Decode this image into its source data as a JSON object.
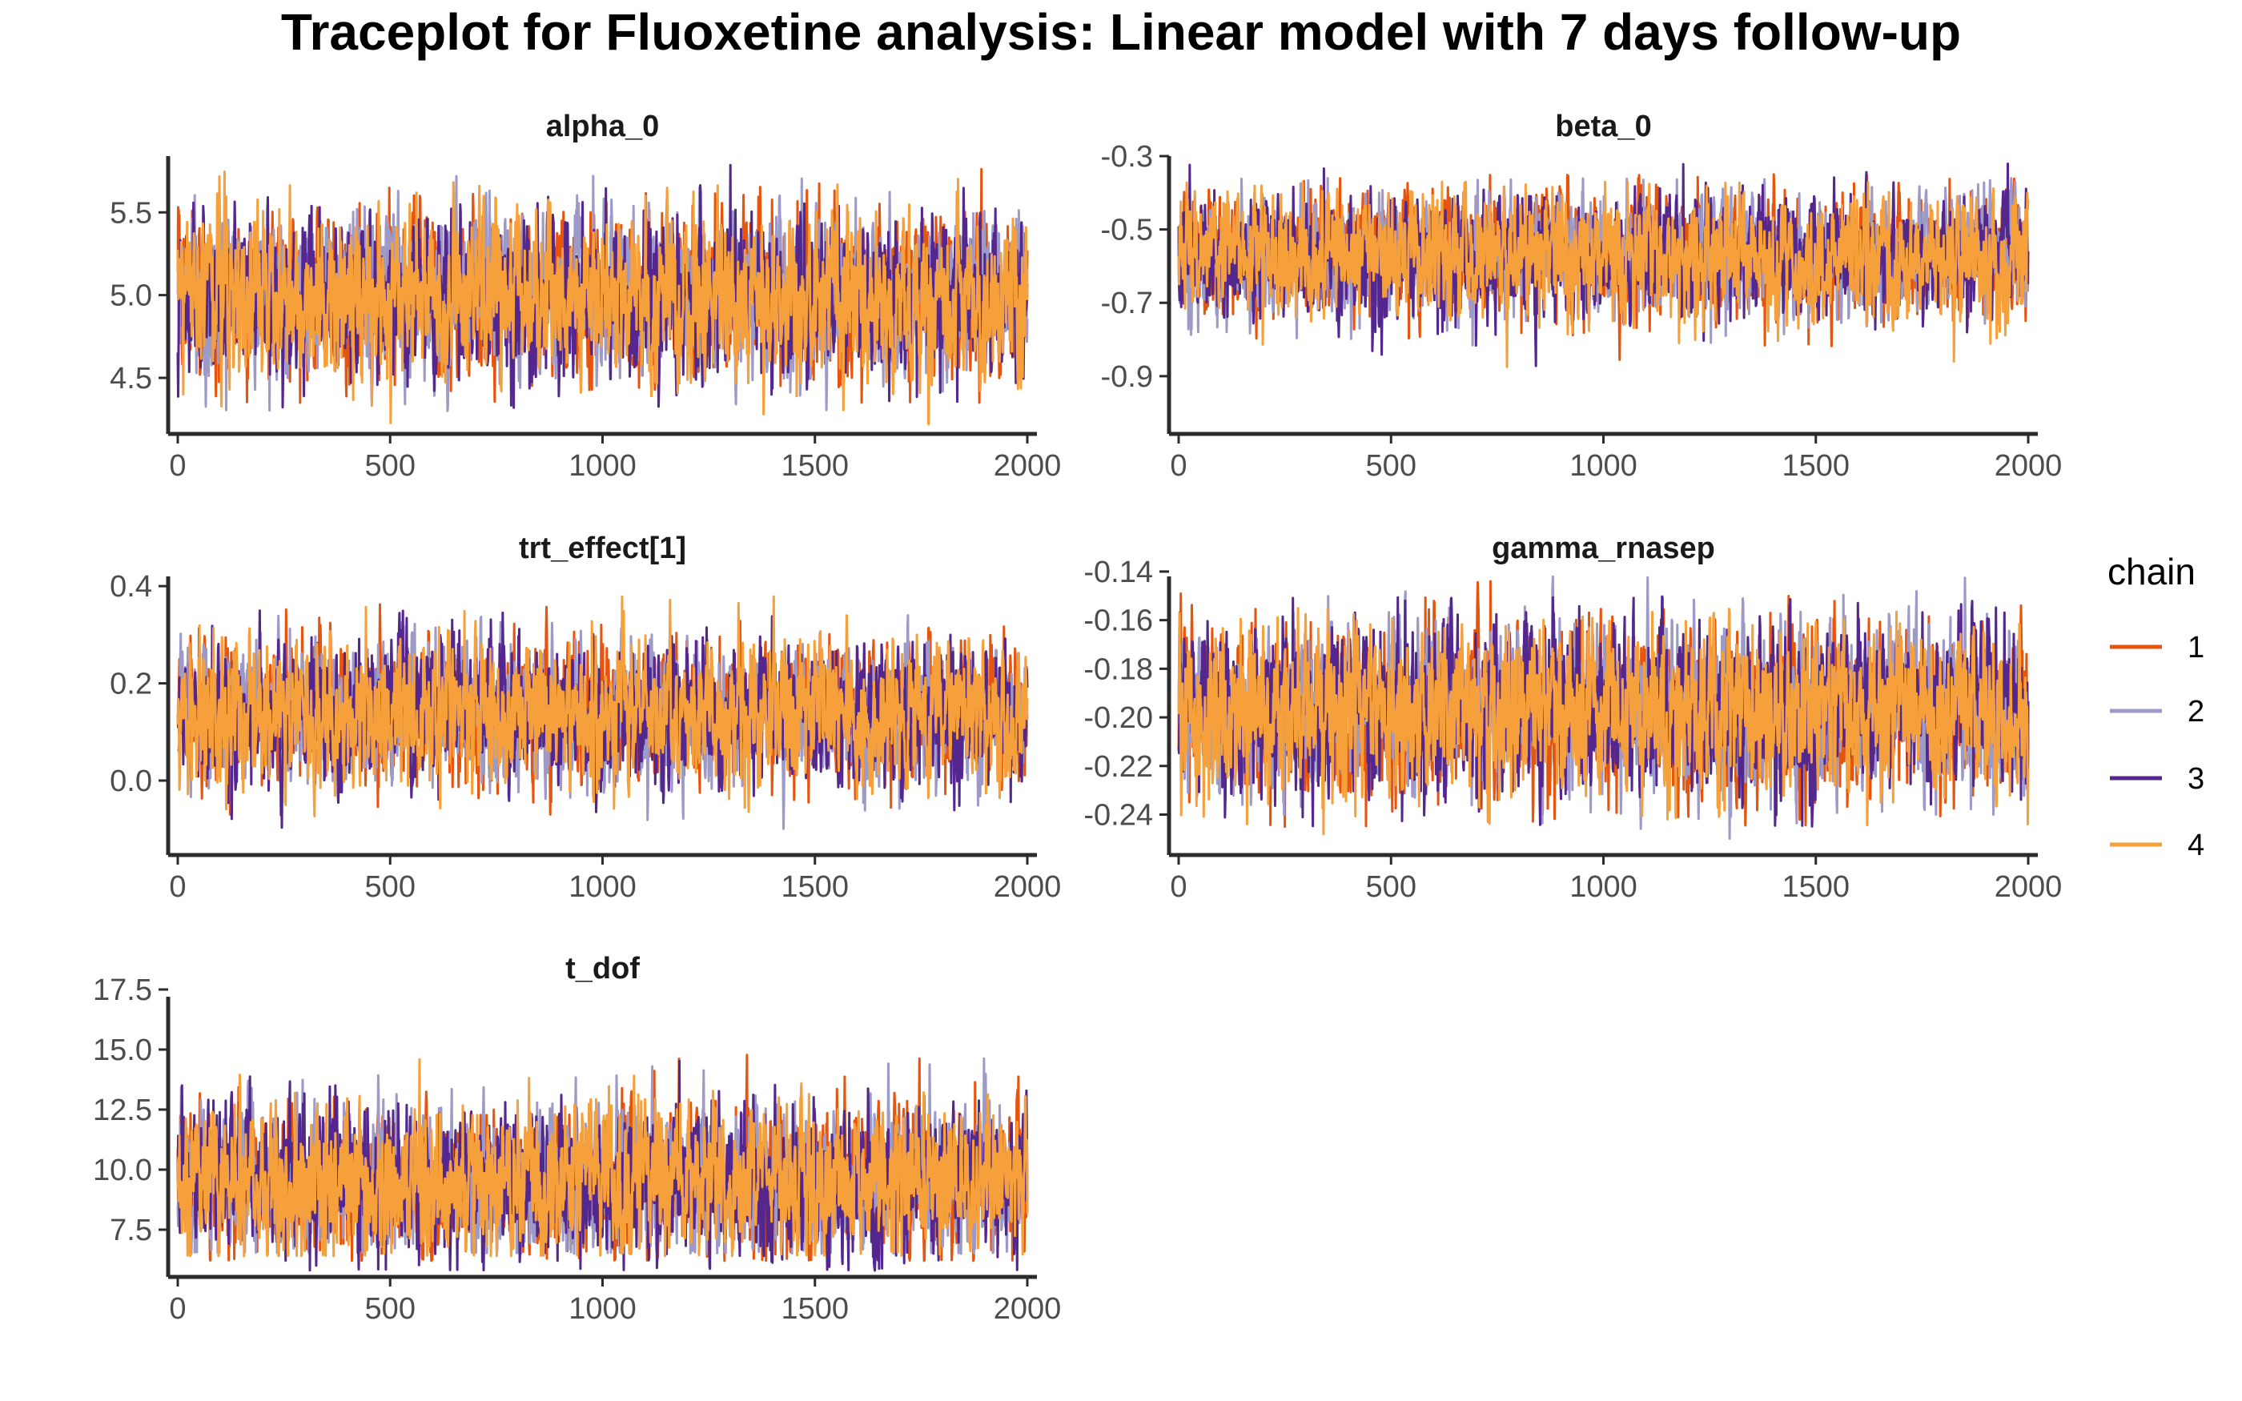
{
  "title": "Traceplot for Fluoxetine analysis: Linear model with 7 days follow-up",
  "legend": {
    "title": "chain",
    "position": "right"
  },
  "colors": {
    "chain1": "#E6550D",
    "chain2": "#9E9AC8",
    "chain3": "#54278F",
    "chain4": "#F5A03A",
    "axis": "#2b2b2b",
    "tick_text": "#4d4d4d"
  },
  "chart_data": [
    {
      "type": "line",
      "title": "alpha_0",
      "xlabel": "",
      "ylabel": "",
      "xlim": [
        0,
        2000
      ],
      "ylim": [
        4.2,
        5.84
      ],
      "x_ticks": [
        0,
        500,
        1000,
        1500,
        2000
      ],
      "y_ticks": [
        4.5,
        5.0,
        5.5
      ],
      "y_tick_labels": [
        "4.5",
        "5.0",
        "5.5"
      ],
      "grid": false,
      "iterations": 2000,
      "series": [
        {
          "name": "1",
          "mean": 5.0,
          "sd": 0.24,
          "min": 4.35,
          "max": 5.78
        },
        {
          "name": "2",
          "mean": 5.0,
          "sd": 0.24,
          "min": 4.3,
          "max": 5.72
        },
        {
          "name": "3",
          "mean": 5.0,
          "sd": 0.24,
          "min": 4.32,
          "max": 5.8
        },
        {
          "name": "4",
          "mean": 5.0,
          "sd": 0.24,
          "min": 4.2,
          "max": 5.84
        }
      ]
    },
    {
      "type": "line",
      "title": "beta_0",
      "xlabel": "",
      "ylabel": "",
      "xlim": [
        0,
        2000
      ],
      "ylim": [
        -1.04,
        -0.3
      ],
      "x_ticks": [
        0,
        500,
        1000,
        1500,
        2000
      ],
      "y_ticks": [
        -0.9,
        -0.7,
        -0.5,
        -0.3
      ],
      "y_tick_labels": [
        "-0.9",
        "-0.7",
        "-0.5",
        "-0.3"
      ],
      "grid": false,
      "iterations": 2000,
      "series": [
        {
          "name": "1",
          "mean": -0.57,
          "sd": 0.08,
          "min": -0.86,
          "max": -0.35
        },
        {
          "name": "2",
          "mean": -0.57,
          "sd": 0.08,
          "min": -0.93,
          "max": -0.36
        },
        {
          "name": "3",
          "mean": -0.57,
          "sd": 0.08,
          "min": -1.04,
          "max": -0.32
        },
        {
          "name": "4",
          "mean": -0.57,
          "sd": 0.08,
          "min": -0.97,
          "max": -0.37
        }
      ]
    },
    {
      "type": "line",
      "title": "trt_effect[1]",
      "xlabel": "",
      "ylabel": "",
      "xlim": [
        0,
        2000
      ],
      "ylim": [
        -0.14,
        0.42
      ],
      "x_ticks": [
        0,
        500,
        1000,
        1500,
        2000
      ],
      "y_ticks": [
        0.0,
        0.2,
        0.4
      ],
      "y_tick_labels": [
        "0.0",
        "0.2",
        "0.4"
      ],
      "grid": false,
      "iterations": 2000,
      "series": [
        {
          "name": "1",
          "mean": 0.14,
          "sd": 0.07,
          "min": -0.07,
          "max": 0.42
        },
        {
          "name": "2",
          "mean": 0.14,
          "sd": 0.07,
          "min": -0.1,
          "max": 0.34
        },
        {
          "name": "3",
          "mean": 0.14,
          "sd": 0.07,
          "min": -0.14,
          "max": 0.35
        },
        {
          "name": "4",
          "mean": 0.14,
          "sd": 0.07,
          "min": -0.08,
          "max": 0.38
        }
      ]
    },
    {
      "type": "line",
      "title": "gamma_rnasep",
      "xlabel": "",
      "ylabel": "",
      "xlim": [
        0,
        2000
      ],
      "ylim": [
        -0.254,
        -0.142
      ],
      "x_ticks": [
        0,
        500,
        1000,
        1500,
        2000
      ],
      "y_ticks": [
        -0.24,
        -0.22,
        -0.2,
        -0.18,
        -0.16,
        -0.14
      ],
      "y_tick_labels": [
        "-0.24",
        "-0.22",
        "-0.20",
        "-0.18",
        "-0.16",
        "-0.14"
      ],
      "grid": false,
      "iterations": 2000,
      "series": [
        {
          "name": "1",
          "mean": -0.197,
          "sd": 0.017,
          "min": -0.245,
          "max": -0.144
        },
        {
          "name": "2",
          "mean": -0.197,
          "sd": 0.017,
          "min": -0.25,
          "max": -0.142
        },
        {
          "name": "3",
          "mean": -0.197,
          "sd": 0.017,
          "min": -0.245,
          "max": -0.15
        },
        {
          "name": "4",
          "mean": -0.197,
          "sd": 0.017,
          "min": -0.254,
          "max": -0.155
        }
      ]
    },
    {
      "type": "line",
      "title": "t_dof",
      "xlabel": "",
      "ylabel": "",
      "xlim": [
        0,
        2000
      ],
      "ylim": [
        5.8,
        17.2
      ],
      "x_ticks": [
        0,
        500,
        1000,
        1500,
        2000
      ],
      "y_ticks": [
        7.5,
        10.0,
        12.5,
        15.0,
        17.5
      ],
      "y_tick_labels": [
        "7.5",
        "10.0",
        "12.5",
        "15.0",
        "17.5"
      ],
      "grid": false,
      "iterations": 2000,
      "series": [
        {
          "name": "1",
          "mean": 9.5,
          "sd": 1.5,
          "min": 6.2,
          "max": 14.8
        },
        {
          "name": "2",
          "mean": 9.5,
          "sd": 1.5,
          "min": 6.5,
          "max": 15.5
        },
        {
          "name": "3",
          "mean": 9.5,
          "sd": 1.5,
          "min": 5.8,
          "max": 16.2
        },
        {
          "name": "4",
          "mean": 9.5,
          "sd": 1.5,
          "min": 6.4,
          "max": 17.2
        }
      ]
    }
  ]
}
